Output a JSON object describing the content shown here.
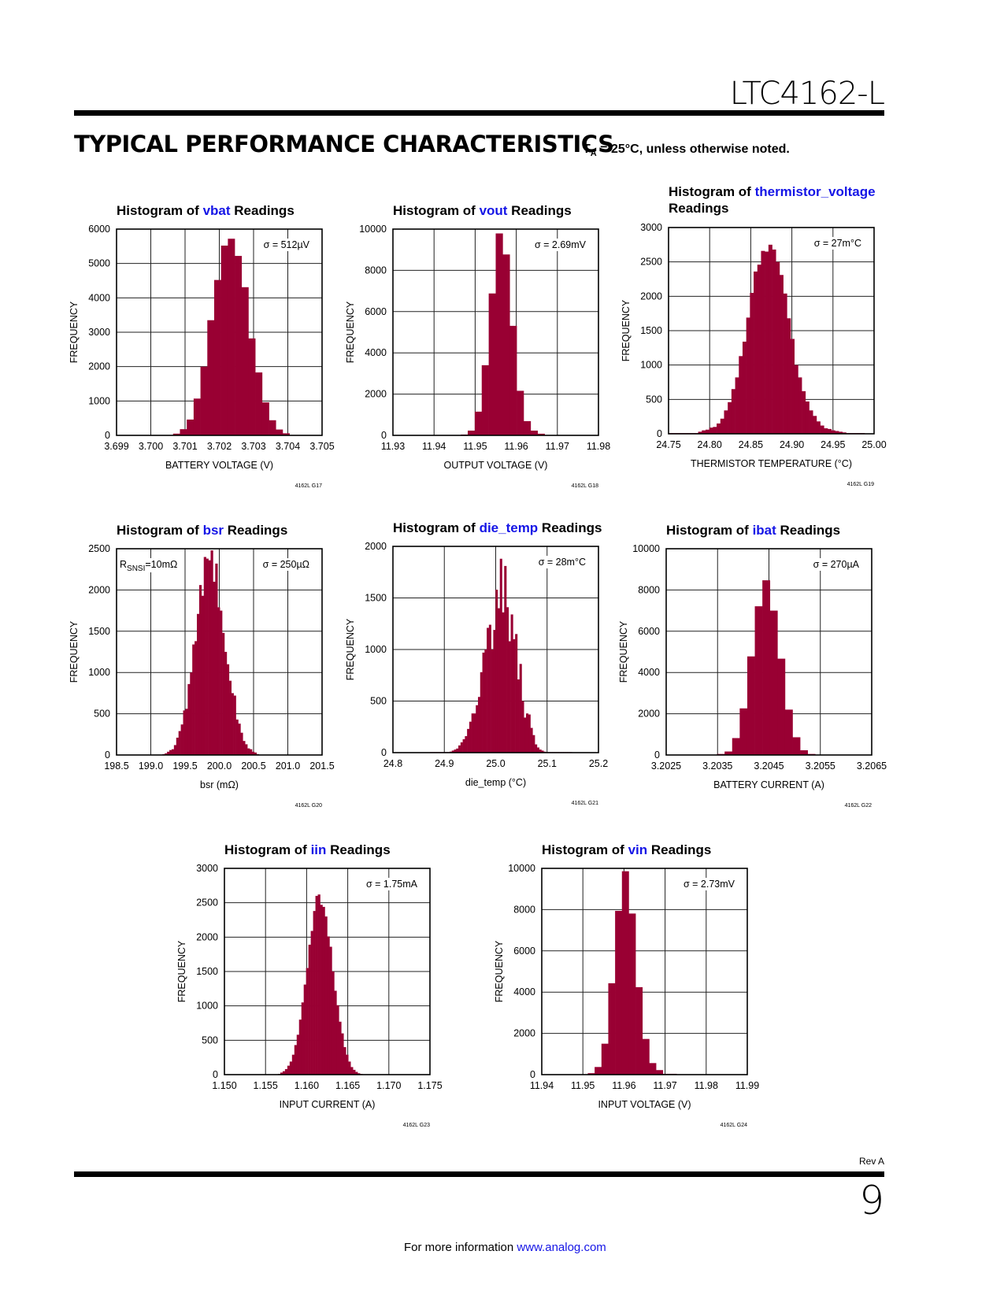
{
  "header": {
    "part_number": "LTC4162-L",
    "section_title": "TYPICAL PERFORMANCE CHARACTERISTICS",
    "note_prefix": "T",
    "note_sub": "A",
    "note_suffix": " = 25°C, unless otherwise noted."
  },
  "footer": {
    "revision": "Rev A",
    "page_number": "9",
    "info_text": "For more information ",
    "info_link": "www.analog.com"
  },
  "colors": {
    "bar": "#990033",
    "variable_name": "#1515e6",
    "grid": "#000000"
  },
  "chart_data": [
    {
      "id": "G17",
      "type": "bar",
      "title_prefix": "Histogram of ",
      "title_var": "vbat",
      "title_suffix": " Readings",
      "xlabel": "BATTERY VOLTAGE (V)",
      "ylabel": "FREQUENCY",
      "xlim": [
        3.699,
        3.705
      ],
      "ylim": [
        0,
        6000
      ],
      "xticks": [
        "3.699",
        "3.700",
        "3.701",
        "3.702",
        "3.703",
        "3.704",
        "3.705"
      ],
      "yticks": [
        "0",
        "1000",
        "2000",
        "3000",
        "4000",
        "5000",
        "6000"
      ],
      "annotations": [
        "σ = 512µV"
      ],
      "figure_id": "4162L G17",
      "bin_start": 3.70065,
      "bin_width": 0.0002,
      "values": [
        50,
        180,
        460,
        1070,
        2000,
        3350,
        4520,
        5520,
        5720,
        5220,
        4310,
        2820,
        1830,
        960,
        440,
        170,
        60
      ]
    },
    {
      "id": "G18",
      "type": "bar",
      "title_prefix": "Histogram of ",
      "title_var": "vout",
      "title_suffix": " Readings",
      "xlabel": "OUTPUT VOLTAGE (V)",
      "ylabel": "FREQUENCY",
      "xlim": [
        11.93,
        11.98
      ],
      "ylim": [
        0,
        10000
      ],
      "xticks": [
        "11.93",
        "11.94",
        "11.95",
        "11.96",
        "11.97",
        "11.98"
      ],
      "yticks": [
        "0",
        "2000",
        "4000",
        "6000",
        "8000",
        "10000"
      ],
      "annotations": [
        "σ = 2.69mV"
      ],
      "figure_id": "4162L G18",
      "bin_start": 11.9465,
      "bin_width": 0.0017,
      "values": [
        40,
        230,
        1150,
        3400,
        6880,
        9790,
        8770,
        5310,
        2160,
        690,
        230,
        80
      ]
    },
    {
      "id": "G19",
      "type": "bar",
      "title_prefix": "Histogram of ",
      "title_var": "thermistor_voltage",
      "title_suffix": "Readings",
      "title_two_line": true,
      "xlabel": "THERMISTOR TEMPERATURE (°C)",
      "ylabel": "FREQUENCY",
      "xlim": [
        24.75,
        25.0
      ],
      "ylim": [
        0,
        3000
      ],
      "xticks": [
        "24.75",
        "24.80",
        "24.85",
        "24.90",
        "24.95",
        "25.00"
      ],
      "yticks": [
        "0",
        "500",
        "1000",
        "1500",
        "2000",
        "2500",
        "3000"
      ],
      "annotations": [
        "σ = 27m°C"
      ],
      "figure_id": "4162L G19",
      "bin_start": 24.75,
      "bin_width": 0.0045,
      "values": [
        10,
        10,
        10,
        10,
        10,
        10,
        10,
        10,
        30,
        50,
        60,
        90,
        100,
        150,
        220,
        340,
        460,
        650,
        820,
        1130,
        1340,
        1690,
        2050,
        2360,
        2460,
        2660,
        2650,
        2750,
        2680,
        2500,
        2310,
        2040,
        1680,
        1380,
        1000,
        820,
        620,
        470,
        340,
        260,
        180,
        120,
        80,
        70,
        50,
        40,
        30,
        20,
        10,
        10,
        10,
        10,
        10,
        0,
        0,
        0
      ]
    },
    {
      "id": "G20",
      "type": "bar",
      "title_prefix": "Histogram of ",
      "title_var": "bsr",
      "title_suffix": " Readings",
      "xlabel": "bsr (mΩ)",
      "ylabel": "FREQUENCY",
      "xlim": [
        198.5,
        201.5
      ],
      "ylim": [
        0,
        2500
      ],
      "xticks": [
        "198.5",
        "199.0",
        "199.5",
        "200.0",
        "200.5",
        "201.0",
        "201.5"
      ],
      "yticks": [
        "0",
        "500",
        "1000",
        "1500",
        "2000",
        "2500"
      ],
      "annotations": [
        "σ = 250µΩ"
      ],
      "annotation_left": {
        "main": "R",
        "sub": "SNSI",
        "rest": "=10mΩ"
      },
      "figure_id": "4162L G20",
      "bin_start": 199.17,
      "bin_width": 0.0335,
      "values": [
        10,
        20,
        40,
        60,
        70,
        120,
        210,
        290,
        370,
        540,
        560,
        860,
        1000,
        1340,
        1380,
        1710,
        2060,
        1930,
        2400,
        2380,
        2360,
        2480,
        2100,
        2320,
        1790,
        1750,
        1480,
        1250,
        1100,
        900,
        750,
        720,
        430,
        380,
        270,
        170,
        130,
        80,
        70,
        40,
        30,
        10
      ]
    },
    {
      "id": "G21",
      "type": "bar",
      "title_prefix": "Histogram of ",
      "title_var": "die_temp",
      "title_suffix": " Readings",
      "xlabel": "die_temp (°C)",
      "ylabel": "FREQUENCY",
      "xlim": [
        24.8,
        25.2
      ],
      "ylim": [
        0,
        2000
      ],
      "xticks": [
        "24.8",
        "24.9",
        "25.0",
        "25.1",
        "25.2"
      ],
      "yticks": [
        "0",
        "500",
        "1000",
        "1500",
        "2000"
      ],
      "annotations": [
        "σ = 28m°C"
      ],
      "figure_id": "4162L G21",
      "bin_start": 24.872,
      "bin_width": 0.00425,
      "values": [
        5,
        5,
        5,
        5,
        5,
        5,
        5,
        5,
        5,
        10,
        20,
        30,
        40,
        70,
        100,
        130,
        160,
        230,
        300,
        380,
        380,
        460,
        540,
        780,
        970,
        1000,
        1210,
        1240,
        1000,
        1190,
        1580,
        1400,
        1880,
        1360,
        1810,
        1410,
        1080,
        1340,
        1100,
        1150,
        710,
        860,
        500,
        340,
        380,
        370,
        240,
        170,
        80,
        50,
        30,
        20,
        10,
        5,
        5,
        5,
        5,
        5,
        5,
        5,
        5,
        5,
        5,
        5,
        5
      ]
    },
    {
      "id": "G22",
      "type": "bar",
      "title_prefix": "Histogram of ",
      "title_var": "ibat",
      "title_suffix": " Readings",
      "xlabel": "BATTERY CURRENT (A)",
      "ylabel": "FREQUENCY",
      "xlim": [
        3.2025,
        3.2065
      ],
      "ylim": [
        0,
        10000
      ],
      "xticks": [
        "3.2025",
        "3.2035",
        "3.2045",
        "3.2055",
        "3.2065"
      ],
      "yticks": [
        "0",
        "2000",
        "4000",
        "6000",
        "8000",
        "10000"
      ],
      "annotations": [
        "σ = 270µA"
      ],
      "figure_id": "4162L G22",
      "bin_start": 3.20349,
      "bin_width": 0.000147,
      "values": [
        50,
        170,
        820,
        2260,
        4780,
        7210,
        8470,
        7000,
        4670,
        2200,
        860,
        230,
        50
      ]
    },
    {
      "id": "G23",
      "type": "bar",
      "title_prefix": "Histogram of ",
      "title_var": "iin",
      "title_suffix": " Readings",
      "xlabel": "INPUT CURRENT (A)",
      "ylabel": "FREQUENCY",
      "xlim": [
        1.15,
        1.175
      ],
      "ylim": [
        0,
        3000
      ],
      "xticks": [
        "1.150",
        "1.155",
        "1.160",
        "1.165",
        "1.170",
        "1.175"
      ],
      "yticks": [
        "0",
        "500",
        "1000",
        "1500",
        "2000",
        "2500",
        "3000"
      ],
      "annotations": [
        "σ = 1.75mA"
      ],
      "figure_id": "4162L G23",
      "bin_start": 1.15651,
      "bin_width": 0.000285,
      "values": [
        10,
        30,
        50,
        80,
        130,
        190,
        290,
        430,
        580,
        800,
        1050,
        1310,
        1550,
        1890,
        2090,
        2380,
        2600,
        2620,
        2470,
        2440,
        2300,
        2010,
        1860,
        1500,
        1220,
        1010,
        770,
        600,
        400,
        290,
        190,
        110,
        70,
        40,
        20,
        10
      ]
    },
    {
      "id": "G24",
      "type": "bar",
      "title_prefix": "Histogram of ",
      "title_var": "vin",
      "title_suffix": " Readings",
      "xlabel": "INPUT VOLTAGE (V)",
      "ylabel": "FREQUENCY",
      "xlim": [
        11.94,
        11.99
      ],
      "ylim": [
        0,
        10000
      ],
      "xticks": [
        "11.94",
        "11.95",
        "11.96",
        "11.97",
        "11.98",
        "11.99"
      ],
      "yticks": [
        "0",
        "2000",
        "4000",
        "6000",
        "8000",
        "10000"
      ],
      "annotations": [
        "σ = 2.73mV"
      ],
      "figure_id": "4162L G24",
      "bin_start": 11.9512,
      "bin_width": 0.00166,
      "values": [
        70,
        370,
        1500,
        4430,
        7940,
        9860,
        7810,
        4240,
        1730,
        560,
        220,
        40,
        40
      ]
    }
  ]
}
